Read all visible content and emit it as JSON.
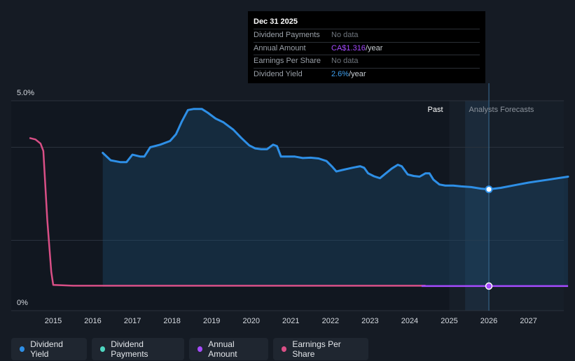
{
  "tooltip": {
    "date": "Dec 31 2025",
    "rows": [
      {
        "label": "Dividend Payments",
        "value": "No data"
      },
      {
        "label": "Annual Amount",
        "value_strong": "CA$1.316",
        "value_suffix": "/year"
      },
      {
        "label": "Earnings Per Share",
        "value": "No data"
      },
      {
        "label": "Dividend Yield",
        "value_strong": "2.6%",
        "value_suffix": "/year"
      }
    ]
  },
  "legend": [
    {
      "label": "Dividend Yield",
      "color": "#2e8fe6"
    },
    {
      "label": "Dividend Payments",
      "color": "#4fd7c1"
    },
    {
      "label": "Annual Amount",
      "color": "#a54bff"
    },
    {
      "label": "Earnings Per Share",
      "color": "#d94f86"
    }
  ],
  "chart_data": {
    "type": "line",
    "x_ticks": [
      "2015",
      "2016",
      "2017",
      "2018",
      "2019",
      "2020",
      "2021",
      "2022",
      "2023",
      "2024",
      "2025",
      "2026",
      "2027"
    ],
    "y_tick_labels": {
      "top": "5.0%",
      "bottom": "0%"
    },
    "ylim": [
      0,
      5.0
    ],
    "xlim": [
      2014.3,
      2028.0
    ],
    "past_label": "Past",
    "forecast_label": "Analysts Forecasts",
    "forecast_start": 2025.0,
    "forecast_shade_start": 2025.4,
    "cursor_x": 2026.0,
    "series": [
      {
        "name": "Dividend Yield",
        "color": "#2e8fe6",
        "points": [
          [
            2016.25,
            3.6
          ],
          [
            2016.45,
            3.4
          ],
          [
            2016.7,
            3.35
          ],
          [
            2016.85,
            3.35
          ],
          [
            2017.0,
            3.55
          ],
          [
            2017.2,
            3.5
          ],
          [
            2017.3,
            3.5
          ],
          [
            2017.45,
            3.75
          ],
          [
            2017.7,
            3.82
          ],
          [
            2017.95,
            3.92
          ],
          [
            2018.1,
            4.1
          ],
          [
            2018.25,
            4.45
          ],
          [
            2018.4,
            4.75
          ],
          [
            2018.55,
            4.78
          ],
          [
            2018.75,
            4.78
          ],
          [
            2018.9,
            4.68
          ],
          [
            2019.1,
            4.52
          ],
          [
            2019.3,
            4.42
          ],
          [
            2019.55,
            4.22
          ],
          [
            2019.75,
            4.0
          ],
          [
            2019.95,
            3.8
          ],
          [
            2020.1,
            3.72
          ],
          [
            2020.25,
            3.7
          ],
          [
            2020.4,
            3.7
          ],
          [
            2020.55,
            3.82
          ],
          [
            2020.65,
            3.78
          ],
          [
            2020.75,
            3.5
          ],
          [
            2020.95,
            3.5
          ],
          [
            2021.1,
            3.5
          ],
          [
            2021.3,
            3.46
          ],
          [
            2021.5,
            3.47
          ],
          [
            2021.7,
            3.45
          ],
          [
            2021.9,
            3.38
          ],
          [
            2022.05,
            3.22
          ],
          [
            2022.15,
            3.1
          ],
          [
            2022.3,
            3.14
          ],
          [
            2022.55,
            3.2
          ],
          [
            2022.75,
            3.24
          ],
          [
            2022.85,
            3.2
          ],
          [
            2022.95,
            3.05
          ],
          [
            2023.1,
            2.97
          ],
          [
            2023.25,
            2.92
          ],
          [
            2023.4,
            3.05
          ],
          [
            2023.55,
            3.18
          ],
          [
            2023.7,
            3.28
          ],
          [
            2023.8,
            3.24
          ],
          [
            2023.95,
            3.02
          ],
          [
            2024.1,
            2.98
          ],
          [
            2024.25,
            2.96
          ],
          [
            2024.4,
            3.05
          ],
          [
            2024.5,
            3.05
          ],
          [
            2024.6,
            2.88
          ],
          [
            2024.75,
            2.75
          ],
          [
            2024.9,
            2.72
          ],
          [
            2025.1,
            2.72
          ],
          [
            2025.3,
            2.7
          ],
          [
            2025.55,
            2.68
          ],
          [
            2025.8,
            2.64
          ],
          [
            2026.0,
            2.62
          ],
          [
            2026.3,
            2.66
          ],
          [
            2026.7,
            2.74
          ],
          [
            2027.0,
            2.8
          ],
          [
            2027.5,
            2.88
          ],
          [
            2028.0,
            2.96
          ]
        ]
      },
      {
        "name": "Annual Amount",
        "color": "#a54bff",
        "points": [
          [
            2024.3,
            0.02
          ],
          [
            2025.0,
            0.02
          ],
          [
            2026.0,
            0.02
          ],
          [
            2028.0,
            0.02
          ]
        ]
      },
      {
        "name": "Earnings Per Share",
        "color": "#d94f86",
        "points": [
          [
            2014.4,
            4.0
          ],
          [
            2014.55,
            3.96
          ],
          [
            2014.68,
            3.85
          ],
          [
            2014.75,
            3.65
          ],
          [
            2014.85,
            1.8
          ],
          [
            2014.95,
            0.4
          ],
          [
            2015.0,
            0.05
          ],
          [
            2015.5,
            0.03
          ],
          [
            2016.0,
            0.03
          ],
          [
            2017.0,
            0.03
          ],
          [
            2018.0,
            0.03
          ],
          [
            2019.0,
            0.03
          ],
          [
            2020.0,
            0.03
          ],
          [
            2021.0,
            0.03
          ],
          [
            2022.0,
            0.03
          ],
          [
            2023.0,
            0.03
          ],
          [
            2024.0,
            0.03
          ],
          [
            2024.4,
            0.03
          ]
        ]
      }
    ]
  }
}
